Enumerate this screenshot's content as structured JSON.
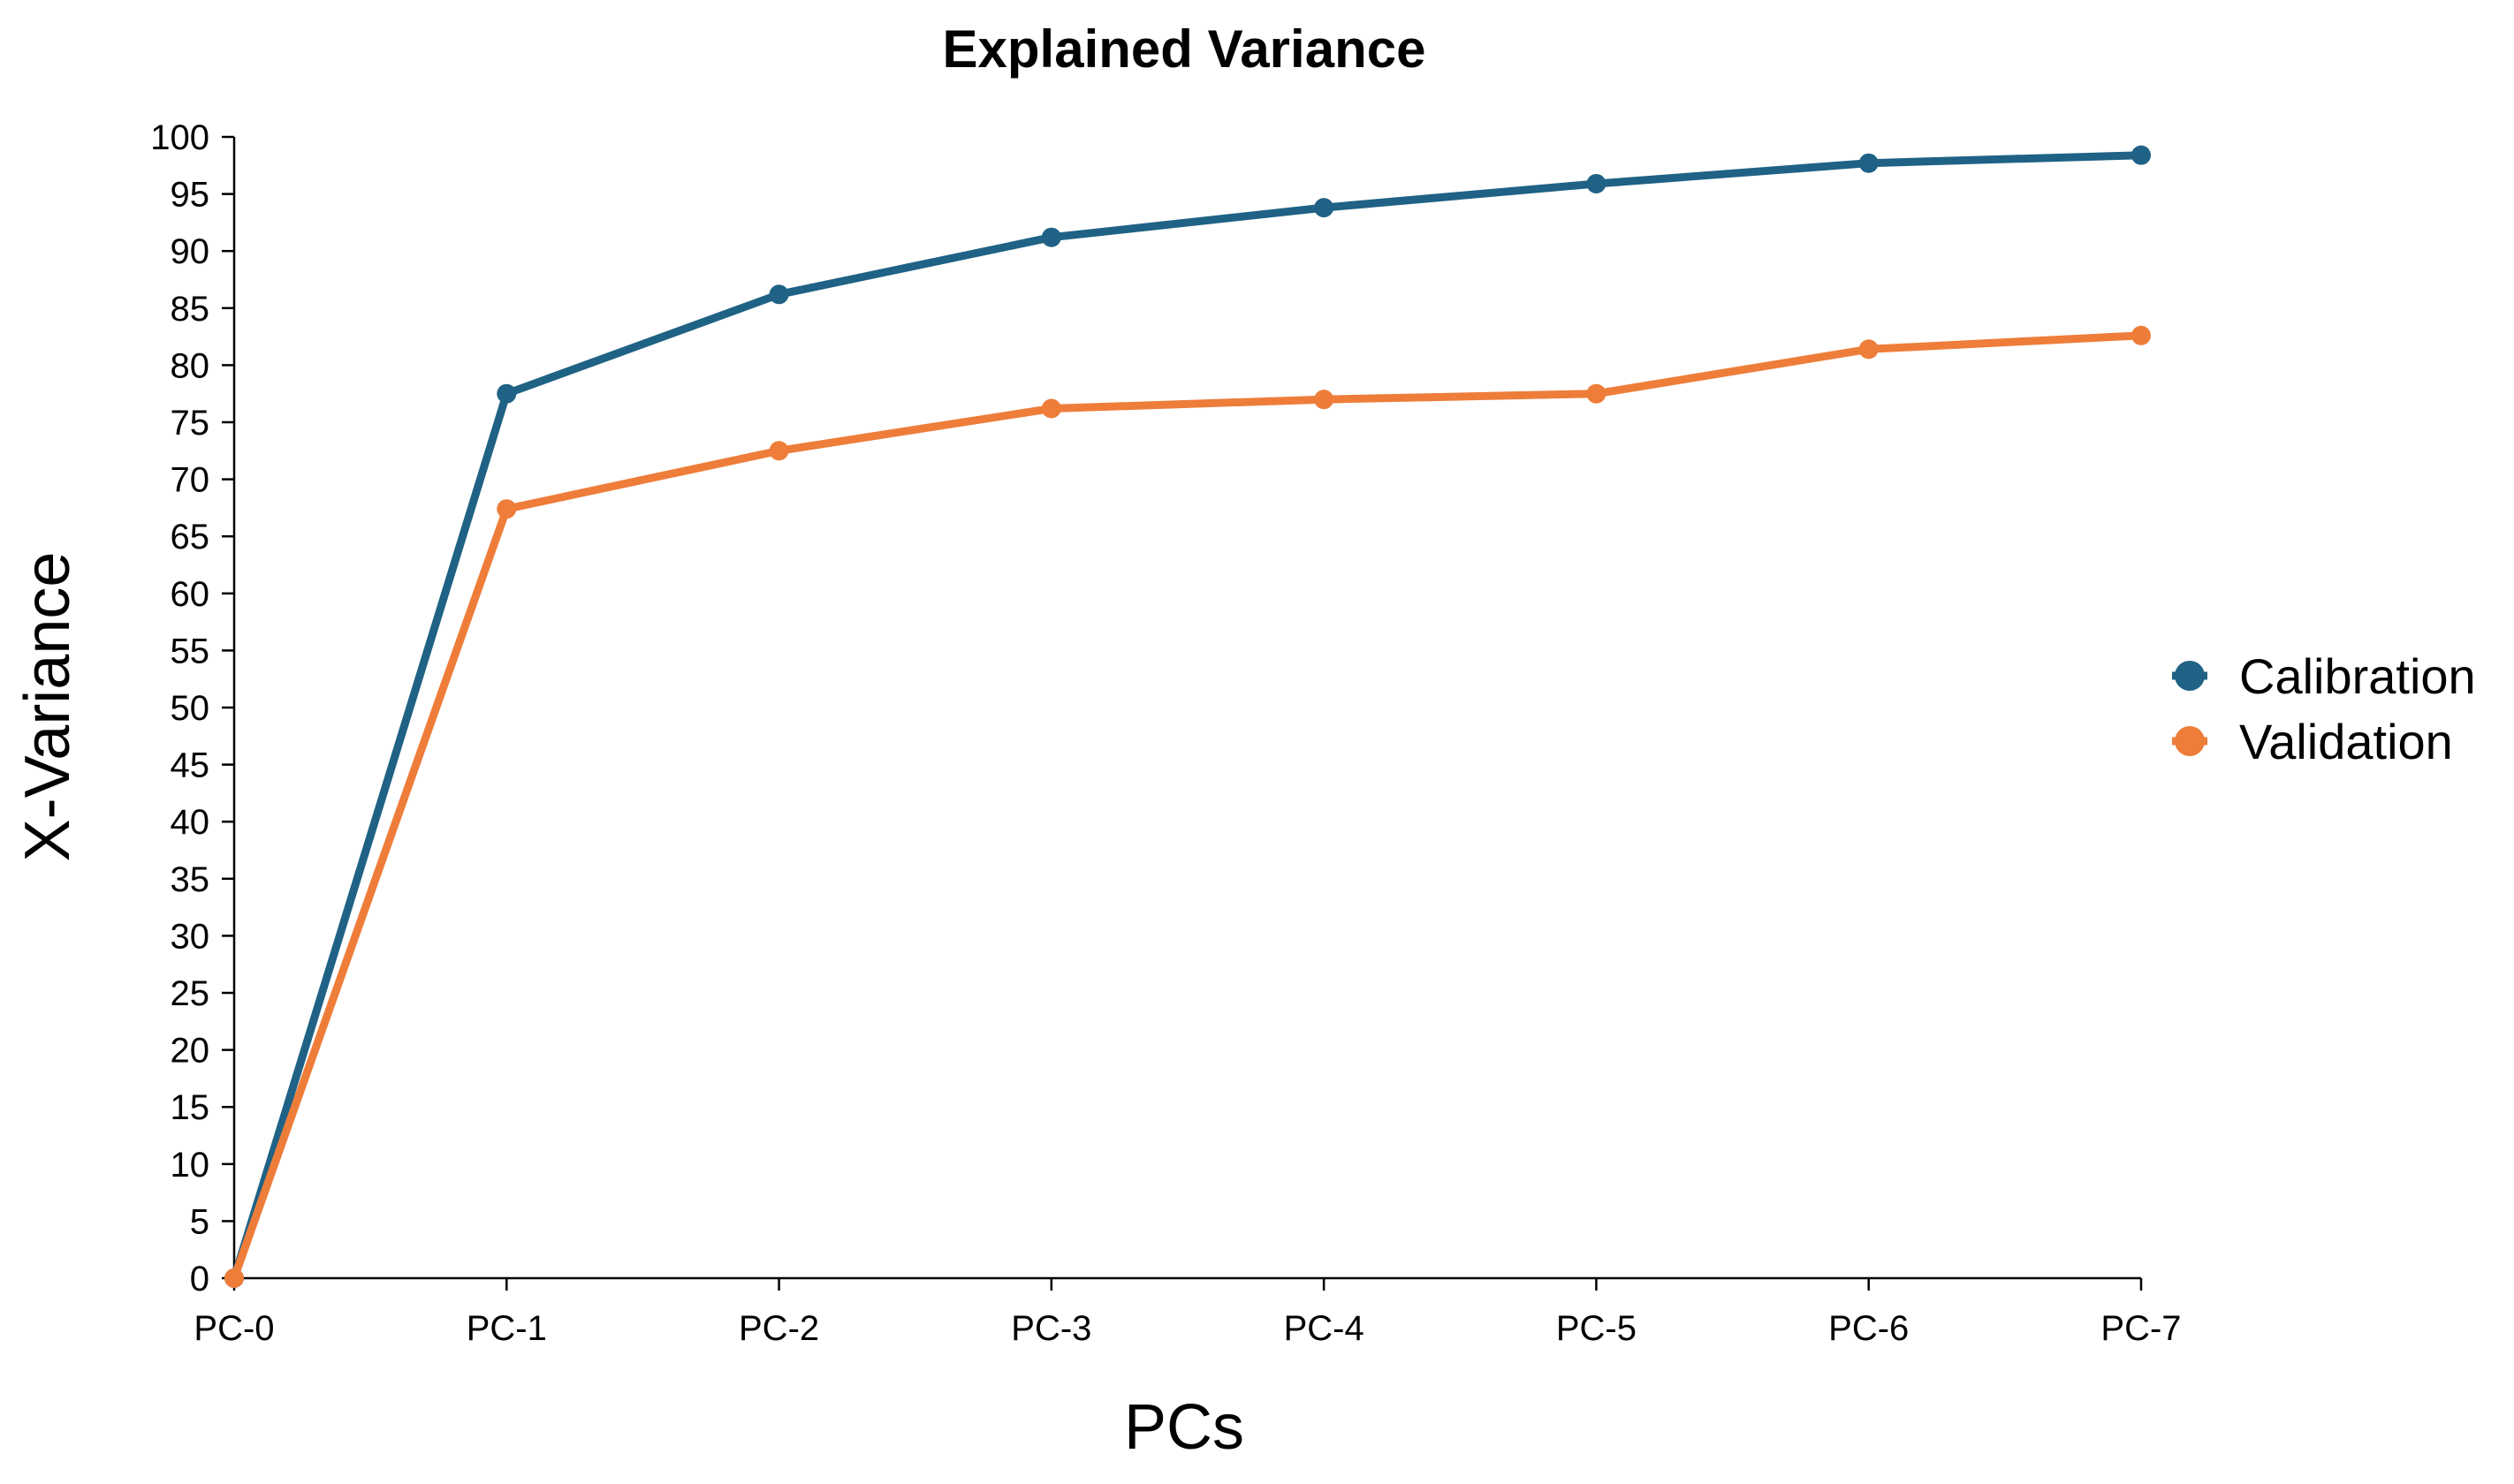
{
  "chart_data": {
    "type": "line",
    "title": "Explained Variance",
    "xlabel": "PCs",
    "ylabel": "X-Variance",
    "categories": [
      "PC-0",
      "PC-1",
      "PC-2",
      "PC-3",
      "PC-4",
      "PC-5",
      "PC-6",
      "PC-7"
    ],
    "ylim": [
      0,
      100
    ],
    "yticks": [
      0,
      5,
      10,
      15,
      20,
      25,
      30,
      35,
      40,
      45,
      50,
      55,
      60,
      65,
      70,
      75,
      80,
      85,
      90,
      95,
      100
    ],
    "grid": false,
    "legend_position": "right",
    "series": [
      {
        "name": "Calibration",
        "color": "#1f6285",
        "values": [
          0,
          77.5,
          86.2,
          91.2,
          93.8,
          95.9,
          97.7,
          98.4
        ]
      },
      {
        "name": "Validation",
        "color": "#ee7d3a",
        "values": [
          0,
          67.4,
          72.5,
          76.2,
          77.0,
          77.5,
          81.4,
          82.6
        ]
      }
    ]
  }
}
